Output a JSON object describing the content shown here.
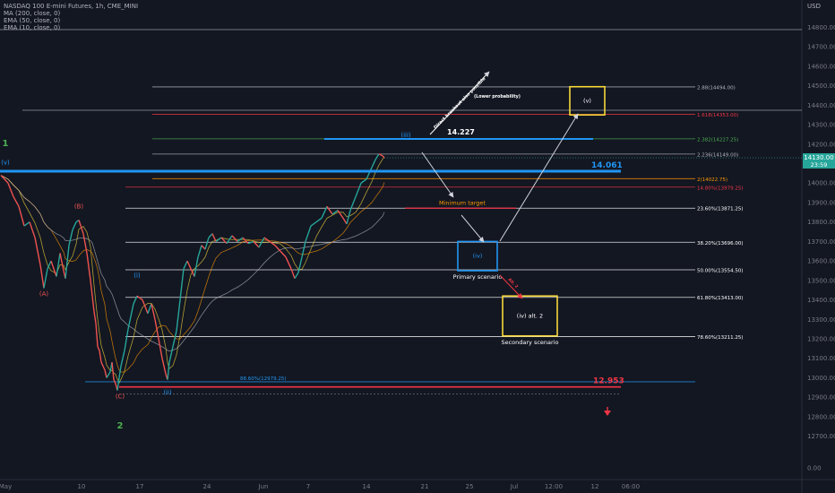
{
  "legend": {
    "symbol": "NASDAQ 100 E-mini Futures, 1h, CME_MINI",
    "ma200": "MA (200, close, 0)",
    "ema50": "EMA (50, close, 0)",
    "ema10": "EMA (10, close, 0)"
  },
  "currency": "USD",
  "colors": {
    "bg": "#131722",
    "up": "#26a69a",
    "down": "#ef5350",
    "blue": "#2196f3",
    "yellow": "#f5d83a",
    "orange": "#ff9800",
    "red": "#f23645",
    "green": "#4caf50",
    "price_label_bg": "#26a69a"
  },
  "chart_data": {
    "type": "line",
    "y_axis": {
      "ticks": [
        14800,
        14700,
        14600,
        14500,
        14400,
        14300,
        14200,
        14100,
        14000,
        13900,
        13800,
        13700,
        13600,
        13500,
        13400,
        13300,
        13200,
        13100,
        13000,
        12900,
        12800,
        12700,
        0
      ],
      "tick_labels": [
        "14800.00",
        "14700.00",
        "14600.00",
        "14500.00",
        "14400.00",
        "14300.00",
        "14200.00",
        "14100.00",
        "14000.00",
        "13900.00",
        "13800.00",
        "13700.00",
        "13600.00",
        "13500.00",
        "13400.00",
        "13300.00",
        "13200.00",
        "13100.00",
        "13000.00",
        "12900.00",
        "12800.00",
        "12700.00",
        "0.00"
      ]
    },
    "x_axis": {
      "ticks": [
        {
          "label": "May",
          "bar": 5
        },
        {
          "label": "10",
          "bar": 90
        },
        {
          "label": "17",
          "bar": 155
        },
        {
          "label": "24",
          "bar": 230
        },
        {
          "label": "Jun",
          "bar": 293
        },
        {
          "label": "7",
          "bar": 343
        },
        {
          "label": "14",
          "bar": 408
        },
        {
          "label": "21",
          "bar": 473
        },
        {
          "label": "25",
          "bar": 523
        },
        {
          "label": "Jul",
          "bar": 573
        },
        {
          "label": "12:00",
          "bar": 617
        },
        {
          "label": "12",
          "bar": 663
        },
        {
          "label": "06:00",
          "bar": 703
        }
      ]
    },
    "current_price": {
      "value": 14130,
      "label": "14130.00",
      "countdown": "23:59"
    },
    "price_path": [
      [
        0,
        14040
      ],
      [
        8,
        14000
      ],
      [
        14,
        13930
      ],
      [
        20,
        13880
      ],
      [
        26,
        13780
      ],
      [
        32,
        13800
      ],
      [
        38,
        13720
      ],
      [
        44,
        13580
      ],
      [
        48,
        13460
      ],
      [
        52,
        13560
      ],
      [
        56,
        13600
      ],
      [
        62,
        13520
      ],
      [
        66,
        13640
      ],
      [
        70,
        13550
      ],
      [
        72,
        13510
      ],
      [
        76,
        13680
      ],
      [
        80,
        13760
      ],
      [
        84,
        13800
      ],
      [
        87,
        13810
      ],
      [
        92,
        13740
      ],
      [
        96,
        13640
      ],
      [
        100,
        13500
      ],
      [
        102,
        13420
      ],
      [
        104,
        13340
      ],
      [
        106,
        13280
      ],
      [
        108,
        13160
      ],
      [
        110,
        13140
      ],
      [
        112,
        13080
      ],
      [
        116,
        13040
      ],
      [
        118,
        13000
      ],
      [
        122,
        13030
      ],
      [
        124,
        13080
      ],
      [
        126,
        12990
      ],
      [
        128,
        12970
      ],
      [
        130,
        12935
      ],
      [
        132,
        13000
      ],
      [
        134,
        13060
      ],
      [
        138,
        13140
      ],
      [
        142,
        13250
      ],
      [
        148,
        13380
      ],
      [
        152,
        13420
      ],
      [
        158,
        13400
      ],
      [
        164,
        13330
      ],
      [
        168,
        13380
      ],
      [
        172,
        13300
      ],
      [
        176,
        13200
      ],
      [
        180,
        13100
      ],
      [
        184,
        13020
      ],
      [
        186,
        12990
      ],
      [
        188,
        13080
      ],
      [
        192,
        13160
      ],
      [
        196,
        13240
      ],
      [
        200,
        13400
      ],
      [
        204,
        13560
      ],
      [
        208,
        13600
      ],
      [
        212,
        13560
      ],
      [
        216,
        13520
      ],
      [
        220,
        13620
      ],
      [
        224,
        13680
      ],
      [
        228,
        13660
      ],
      [
        232,
        13720
      ],
      [
        236,
        13740
      ],
      [
        240,
        13700
      ],
      [
        246,
        13720
      ],
      [
        252,
        13690
      ],
      [
        258,
        13730
      ],
      [
        264,
        13700
      ],
      [
        270,
        13720
      ],
      [
        276,
        13690
      ],
      [
        282,
        13700
      ],
      [
        288,
        13670
      ],
      [
        294,
        13720
      ],
      [
        300,
        13700
      ],
      [
        306,
        13680
      ],
      [
        312,
        13650
      ],
      [
        318,
        13620
      ],
      [
        324,
        13560
      ],
      [
        328,
        13510
      ],
      [
        332,
        13540
      ],
      [
        336,
        13620
      ],
      [
        340,
        13700
      ],
      [
        346,
        13780
      ],
      [
        352,
        13800
      ],
      [
        358,
        13820
      ],
      [
        364,
        13880
      ],
      [
        370,
        13840
      ],
      [
        376,
        13860
      ],
      [
        382,
        13820
      ],
      [
        386,
        13790
      ],
      [
        390,
        13860
      ],
      [
        396,
        13930
      ],
      [
        402,
        14000
      ],
      [
        408,
        14020
      ],
      [
        414,
        14080
      ],
      [
        418,
        14120
      ],
      [
        422,
        14150
      ],
      [
        426,
        14140
      ],
      [
        428,
        14130
      ]
    ],
    "fib_levels": [
      {
        "label": "2.88(14494.00)",
        "price": 14494,
        "color": "#b2b5be"
      },
      {
        "label": "1.618(14353.00)",
        "price": 14353,
        "color": "#f23645"
      },
      {
        "label": "2.382(14227.25)",
        "price": 14227.25,
        "color": "#4caf50"
      },
      {
        "label": "2.236(14149.00)",
        "price": 14149,
        "color": "#b2b5be"
      },
      {
        "label": "2(14022.75)",
        "price": 14022.75,
        "color": "#ff9800"
      },
      {
        "label": "14.80%(13979.25)",
        "price": 13979.25,
        "color": "#f23645"
      },
      {
        "label": "23.60%(13871.25)",
        "price": 13871.25,
        "color": "#ffffff"
      },
      {
        "label": "38.20%(13696.00)",
        "price": 13696,
        "color": "#ffffff"
      },
      {
        "label": "50.00%(13554.50)",
        "price": 13554.5,
        "color": "#ffffff"
      },
      {
        "label": "61.80%(13413.00)",
        "price": 13413,
        "color": "#ffffff"
      },
      {
        "label": "78.60%(13211.25)",
        "price": 13211.25,
        "color": "#ffffff"
      },
      {
        "label": "88.60%(12979.25)",
        "price": 12979.25,
        "color": "#2196f3"
      }
    ],
    "key_levels": [
      {
        "label": "14.227",
        "price": 14227,
        "color": "#2196f3"
      },
      {
        "label": "14.061",
        "price": 14061,
        "color": "#2196f3"
      },
      {
        "label": "12.953",
        "price": 12953,
        "color": "#f23645"
      }
    ],
    "wave_labels": [
      {
        "text": "1",
        "bar": 5,
        "price": 14190,
        "color": "#4caf50"
      },
      {
        "text": "(v)",
        "bar": 5,
        "price": 14095,
        "color": "#2196f3"
      },
      {
        "text": "(A)",
        "bar": 48,
        "price": 13420,
        "color": "#ef5350"
      },
      {
        "text": "(B)",
        "bar": 87,
        "price": 13870,
        "color": "#ef5350"
      },
      {
        "text": "(C)",
        "bar": 133,
        "price": 12895,
        "color": "#ef5350"
      },
      {
        "text": "2",
        "bar": 133,
        "price": 12740,
        "color": "#4caf50"
      },
      {
        "text": "(i)",
        "bar": 152,
        "price": 13515,
        "color": "#2196f3"
      },
      {
        "text": "(ii)",
        "bar": 186,
        "price": 12915,
        "color": "#2196f3"
      },
      {
        "text": "(iii)",
        "bar": 452,
        "price": 14235,
        "color": "#2196f3"
      }
    ],
    "boxes": [
      {
        "label": "(v)",
        "x0": 635,
        "x1": 674,
        "p0": 14495,
        "p1": 14350,
        "color": "#f5d83a",
        "caption": ""
      },
      {
        "label": "(iv)",
        "x0": 510,
        "x1": 554,
        "p0": 13700,
        "p1": 13550,
        "color": "#2196f3",
        "caption": "Primary scenario"
      },
      {
        "label": "(iv) alt. 2",
        "x0": 560,
        "x1": 621,
        "p0": 13420,
        "p1": 13215,
        "color": "#f5d83a",
        "caption": "Secondary scenario"
      }
    ],
    "annotations": {
      "minimum_target": "Minimum target",
      "lower_probability": "(Lower probability)",
      "direct_breakout": "Direct breakout also possible",
      "alt": "Alt. 2"
    }
  }
}
